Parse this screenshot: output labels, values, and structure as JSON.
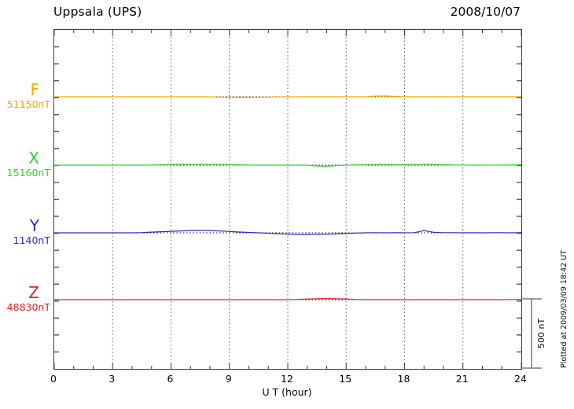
{
  "header": {
    "title": "Uppsala (UPS)",
    "date": "2008/10/07"
  },
  "xaxis": {
    "label": "U T (hour)",
    "ticks": [
      "0",
      "3",
      "6",
      "9",
      "12",
      "15",
      "18",
      "21",
      "24"
    ]
  },
  "scale_bar": {
    "label": "500 nT"
  },
  "footer_note": "Plotted at 2009/03/09 18:42 UT",
  "colors": {
    "frame": "#3c3c3c",
    "grid": "#5a5a5a",
    "edge_tick": "#555555",
    "baseline": "#151515",
    "scalebar": "#7a7a7a",
    "F": "#f5a500",
    "X": "#2fd32f",
    "Y": "#2a2ac8",
    "Z": "#e02020"
  },
  "chart_data": {
    "type": "line",
    "title": "Uppsala (UPS) magnetogram 2008/10/07",
    "xlabel": "U T (hour)",
    "x_range": [
      0,
      24
    ],
    "x_tick_step_hours": 3,
    "x_minor_tick_hours": 1,
    "grid": "vertical-dotted-every-3h",
    "x_step_hours": 0.5,
    "scale_bar_nT": 500,
    "series": [
      {
        "name": "F",
        "letter": "F",
        "baseline_label": "51150nT",
        "baseline_value_nT": 51150,
        "color": "#f5a500",
        "deviation_nT": [
          0,
          0,
          0,
          0,
          0,
          0,
          0,
          0,
          0,
          0,
          0,
          0,
          0,
          0,
          0,
          0,
          0,
          -3,
          -5,
          -6,
          -6,
          -5,
          -3,
          -1,
          0,
          0,
          0,
          0,
          0,
          0,
          0,
          0,
          0,
          5,
          6,
          3,
          0,
          0,
          0,
          0,
          0,
          0,
          0,
          0,
          0,
          0,
          0,
          0,
          0
        ]
      },
      {
        "name": "X",
        "letter": "X",
        "baseline_label": "15160nT",
        "baseline_value_nT": 15160,
        "color": "#2fd32f",
        "deviation_nT": [
          0,
          0,
          0,
          0,
          0,
          0,
          0,
          0,
          0,
          0,
          1,
          3,
          5,
          6,
          6,
          6,
          6,
          5,
          5,
          3,
          1,
          0,
          0,
          0,
          0,
          0,
          0,
          -6,
          -8,
          -4,
          0,
          2,
          4,
          5,
          5,
          4,
          4,
          5,
          5,
          6,
          4,
          2,
          1,
          0,
          0,
          1,
          1,
          2,
          3
        ]
      },
      {
        "name": "Y",
        "letter": "Y",
        "baseline_label": "1140nT",
        "baseline_value_nT": 1140,
        "color": "#2a2ac8",
        "deviation_nT": [
          0,
          0,
          0,
          0,
          0,
          0,
          0,
          0,
          0,
          2,
          5,
          8,
          11,
          14,
          17,
          18,
          17,
          14,
          10,
          6,
          3,
          0,
          -3,
          -7,
          -10,
          -12,
          -12,
          -11,
          -10,
          -8,
          -5,
          -2,
          0,
          1,
          0,
          1,
          0,
          1,
          16,
          4,
          1,
          1,
          0,
          1,
          0,
          1,
          1,
          0,
          2
        ]
      },
      {
        "name": "Z",
        "letter": "Z",
        "baseline_label": "48830nT",
        "baseline_value_nT": 48830,
        "color": "#e02020",
        "deviation_nT": [
          0,
          0,
          0,
          0,
          0,
          0,
          0,
          0,
          0,
          0,
          0,
          0,
          0,
          0,
          0,
          0,
          0,
          0,
          0,
          0,
          0,
          0,
          0,
          0,
          0,
          2,
          5,
          7,
          8,
          7,
          5,
          2,
          0,
          0,
          0,
          0,
          0,
          0,
          0,
          0,
          0,
          0,
          0,
          0,
          0,
          0,
          0,
          1,
          2
        ]
      }
    ]
  }
}
